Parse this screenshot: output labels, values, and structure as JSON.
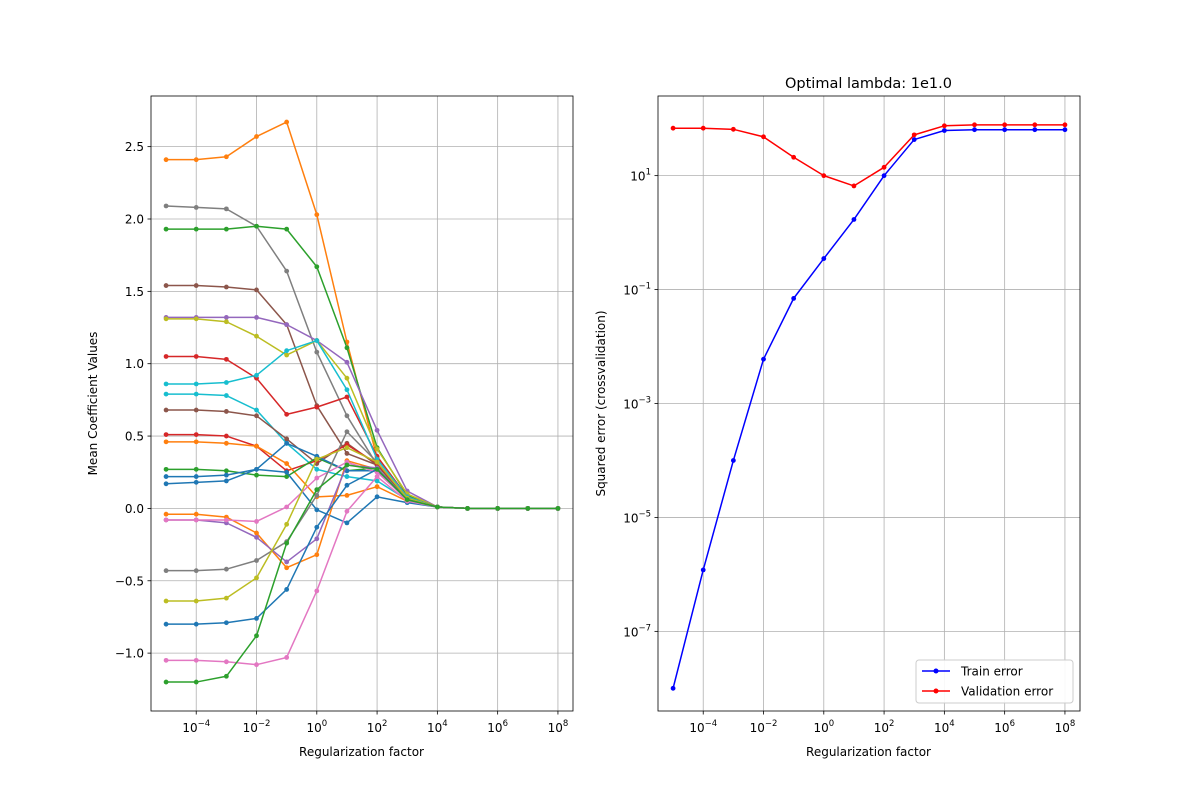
{
  "chart_data": [
    {
      "type": "line",
      "title": "",
      "xlabel": "Regularization factor",
      "ylabel": "Mean Coefficient Values",
      "xscale": "log",
      "yscale": "linear",
      "xlim": [
        3.16e-06,
        316000000
      ],
      "ylim": [
        -1.4,
        2.85
      ],
      "grid": true,
      "legend": "none",
      "x": [
        1e-05,
        0.0001,
        0.001,
        0.01,
        0.1,
        1,
        10,
        100,
        1000,
        10000,
        100000,
        1000000,
        10000000,
        100000000
      ],
      "xticks": [
        {
          "value": 0.0001,
          "base": "10",
          "exp": "−4"
        },
        {
          "value": 0.01,
          "base": "10",
          "exp": "−2"
        },
        {
          "value": 1,
          "base": "10",
          "exp": "0"
        },
        {
          "value": 100,
          "base": "10",
          "exp": "2"
        },
        {
          "value": 10000,
          "base": "10",
          "exp": "4"
        },
        {
          "value": 1000000,
          "base": "10",
          "exp": "6"
        },
        {
          "value": 100000000,
          "base": "10",
          "exp": "8"
        }
      ],
      "yticks": [
        {
          "value": -1.0,
          "label": "−1.0"
        },
        {
          "value": -0.5,
          "label": "−0.5"
        },
        {
          "value": 0.0,
          "label": "0.0"
        },
        {
          "value": 0.5,
          "label": "0.5"
        },
        {
          "value": 1.0,
          "label": "1.0"
        },
        {
          "value": 1.5,
          "label": "1.5"
        },
        {
          "value": 2.0,
          "label": "2.0"
        },
        {
          "value": 2.5,
          "label": "2.5"
        }
      ],
      "series": [
        {
          "color": "#ff7f0e",
          "values": [
            2.41,
            2.41,
            2.43,
            2.57,
            2.67,
            2.03,
            1.15,
            0.35,
            0.08,
            0.01,
            0.0,
            0.0,
            0.0,
            0.0
          ]
        },
        {
          "color": "#7f7f7f",
          "values": [
            2.09,
            2.08,
            2.07,
            1.95,
            1.64,
            1.08,
            0.64,
            0.3,
            0.07,
            0.01,
            0.0,
            0.0,
            0.0,
            0.0
          ]
        },
        {
          "color": "#2ca02c",
          "values": [
            1.93,
            1.93,
            1.93,
            1.95,
            1.93,
            1.67,
            1.11,
            0.42,
            0.09,
            0.01,
            0.0,
            0.0,
            0.0,
            0.0
          ]
        },
        {
          "color": "#8c564b",
          "values": [
            1.54,
            1.54,
            1.53,
            1.51,
            1.27,
            0.71,
            0.38,
            0.3,
            0.07,
            0.01,
            0.0,
            0.0,
            0.0,
            0.0
          ]
        },
        {
          "color": "#9467bd",
          "values": [
            1.32,
            1.32,
            1.32,
            1.32,
            1.27,
            1.16,
            1.01,
            0.54,
            0.12,
            0.01,
            0.0,
            0.0,
            0.0,
            0.0
          ]
        },
        {
          "color": "#bcbd22",
          "values": [
            1.31,
            1.31,
            1.29,
            1.19,
            1.06,
            1.16,
            0.9,
            0.41,
            0.1,
            0.01,
            0.0,
            0.0,
            0.0,
            0.0
          ]
        },
        {
          "color": "#d62728",
          "values": [
            1.05,
            1.05,
            1.03,
            0.9,
            0.65,
            0.7,
            0.77,
            0.36,
            0.08,
            0.01,
            0.0,
            0.0,
            0.0,
            0.0
          ]
        },
        {
          "color": "#17becf",
          "values": [
            0.86,
            0.86,
            0.87,
            0.92,
            1.09,
            1.16,
            0.82,
            0.34,
            0.08,
            0.01,
            0.0,
            0.0,
            0.0,
            0.0
          ]
        },
        {
          "color": "#17becf",
          "values": [
            0.79,
            0.79,
            0.78,
            0.68,
            0.45,
            0.27,
            0.22,
            0.19,
            0.06,
            0.01,
            0.0,
            0.0,
            0.0,
            0.0
          ]
        },
        {
          "color": "#8c564b",
          "values": [
            0.68,
            0.68,
            0.67,
            0.64,
            0.48,
            0.31,
            0.45,
            0.3,
            0.07,
            0.01,
            0.0,
            0.0,
            0.0,
            0.0
          ]
        },
        {
          "color": "#d62728",
          "values": [
            0.51,
            0.51,
            0.5,
            0.43,
            0.26,
            0.33,
            0.44,
            0.31,
            0.07,
            0.01,
            0.0,
            0.0,
            0.0,
            0.0
          ]
        },
        {
          "color": "#ff7f0e",
          "values": [
            0.46,
            0.46,
            0.45,
            0.43,
            0.31,
            0.08,
            0.09,
            0.15,
            0.05,
            0.01,
            0.0,
            0.0,
            0.0,
            0.0
          ]
        },
        {
          "color": "#2ca02c",
          "values": [
            0.27,
            0.27,
            0.26,
            0.23,
            0.22,
            0.35,
            0.26,
            0.28,
            0.06,
            0.01,
            0.0,
            0.0,
            0.0,
            0.0
          ]
        },
        {
          "color": "#1f77b4",
          "values": [
            0.22,
            0.22,
            0.23,
            0.27,
            0.25,
            -0.01,
            -0.1,
            0.08,
            0.04,
            0.01,
            0.0,
            0.0,
            0.0,
            0.0
          ]
        },
        {
          "color": "#1f77b4",
          "values": [
            0.17,
            0.18,
            0.19,
            0.27,
            0.45,
            0.36,
            0.26,
            0.26,
            0.06,
            0.01,
            0.0,
            0.0,
            0.0,
            0.0
          ]
        },
        {
          "color": "#ff7f0e",
          "values": [
            -0.04,
            -0.04,
            -0.06,
            -0.17,
            -0.41,
            -0.32,
            0.33,
            0.27,
            0.06,
            0.01,
            0.0,
            0.0,
            0.0,
            0.0
          ]
        },
        {
          "color": "#9467bd",
          "values": [
            -0.08,
            -0.08,
            -0.1,
            -0.2,
            -0.37,
            -0.21,
            0.3,
            0.28,
            0.06,
            0.01,
            0.0,
            0.0,
            0.0,
            0.0
          ]
        },
        {
          "color": "#e377c2",
          "values": [
            -0.08,
            -0.08,
            -0.08,
            -0.09,
            0.01,
            0.21,
            0.32,
            0.25,
            0.06,
            0.01,
            0.0,
            0.0,
            0.0,
            0.0
          ]
        },
        {
          "color": "#7f7f7f",
          "values": [
            -0.43,
            -0.43,
            -0.42,
            -0.36,
            -0.23,
            0.09,
            0.53,
            0.32,
            0.07,
            0.01,
            0.0,
            0.0,
            0.0,
            0.0
          ]
        },
        {
          "color": "#bcbd22",
          "values": [
            -0.64,
            -0.64,
            -0.62,
            -0.48,
            -0.11,
            0.34,
            0.42,
            0.32,
            0.07,
            0.01,
            0.0,
            0.0,
            0.0,
            0.0
          ]
        },
        {
          "color": "#1f77b4",
          "values": [
            -0.8,
            -0.8,
            -0.79,
            -0.76,
            -0.56,
            -0.13,
            0.16,
            0.27,
            0.06,
            0.01,
            0.0,
            0.0,
            0.0,
            0.0
          ]
        },
        {
          "color": "#e377c2",
          "values": [
            -1.05,
            -1.05,
            -1.06,
            -1.08,
            -1.03,
            -0.57,
            -0.02,
            0.22,
            0.05,
            0.01,
            0.0,
            0.0,
            0.0,
            0.0
          ]
        },
        {
          "color": "#2ca02c",
          "values": [
            -1.2,
            -1.2,
            -1.16,
            -0.88,
            -0.24,
            0.13,
            0.3,
            0.27,
            0.06,
            0.01,
            0.0,
            0.0,
            0.0,
            0.0
          ]
        }
      ]
    },
    {
      "type": "line",
      "title": "Optimal lambda: 1e1.0",
      "xlabel": "Regularization factor",
      "ylabel": "Squared error (crossvalidation)",
      "xscale": "log",
      "yscale": "log",
      "xlim": [
        3.16e-06,
        316000000
      ],
      "ylim": [
        4e-09,
        250
      ],
      "grid": true,
      "legend": "lower-right",
      "x": [
        1e-05,
        0.0001,
        0.001,
        0.01,
        0.1,
        1,
        10,
        100,
        1000,
        10000,
        100000,
        1000000,
        10000000,
        100000000
      ],
      "xticks": [
        {
          "value": 0.0001,
          "base": "10",
          "exp": "−4"
        },
        {
          "value": 0.01,
          "base": "10",
          "exp": "−2"
        },
        {
          "value": 1,
          "base": "10",
          "exp": "0"
        },
        {
          "value": 100,
          "base": "10",
          "exp": "2"
        },
        {
          "value": 10000,
          "base": "10",
          "exp": "4"
        },
        {
          "value": 1000000,
          "base": "10",
          "exp": "6"
        },
        {
          "value": 100000000,
          "base": "10",
          "exp": "8"
        }
      ],
      "yticks": [
        {
          "value": 1e-07,
          "base": "10",
          "exp": "−7"
        },
        {
          "value": 1e-05,
          "base": "10",
          "exp": "−5"
        },
        {
          "value": 0.001,
          "base": "10",
          "exp": "−3"
        },
        {
          "value": 0.1,
          "base": "10",
          "exp": "−1"
        },
        {
          "value": 10,
          "base": "10",
          "exp": "1"
        }
      ],
      "series": [
        {
          "name": "Train error",
          "color": "#0000ff",
          "values": [
            1e-08,
            1.2e-06,
            0.0001,
            0.006,
            0.07,
            0.35,
            1.7,
            10,
            43,
            62,
            64,
            64,
            64,
            64
          ]
        },
        {
          "name": "Validation error",
          "color": "#ff0000",
          "values": [
            68,
            68,
            65,
            48,
            21,
            10,
            6.6,
            14,
            52,
            75,
            78,
            78,
            78,
            78
          ]
        }
      ]
    }
  ]
}
